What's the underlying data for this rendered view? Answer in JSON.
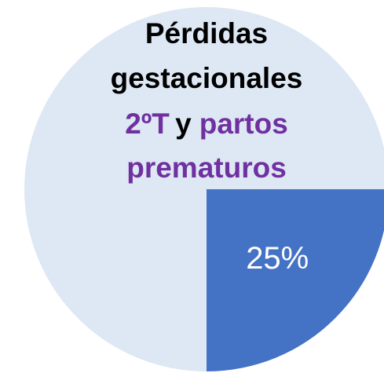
{
  "chart_data": {
    "type": "pie",
    "title_lines": [
      [
        {
          "text": "Pérdidas",
          "color": "#000000"
        }
      ],
      [
        {
          "text": "gestacionales",
          "color": "#000000"
        }
      ],
      [
        {
          "text": "2ºT",
          "color": "#7030a0"
        },
        {
          "text": "y",
          "color": "#000000"
        },
        {
          "text": "partos",
          "color": "#7030a0"
        }
      ],
      [
        {
          "text": "prematuros",
          "color": "#7030a0"
        }
      ]
    ],
    "values": [
      25,
      75
    ],
    "value_labels": [
      "25%",
      null
    ],
    "colors": [
      "#4472c4",
      "#dde8f4"
    ],
    "startangle": 0
  }
}
